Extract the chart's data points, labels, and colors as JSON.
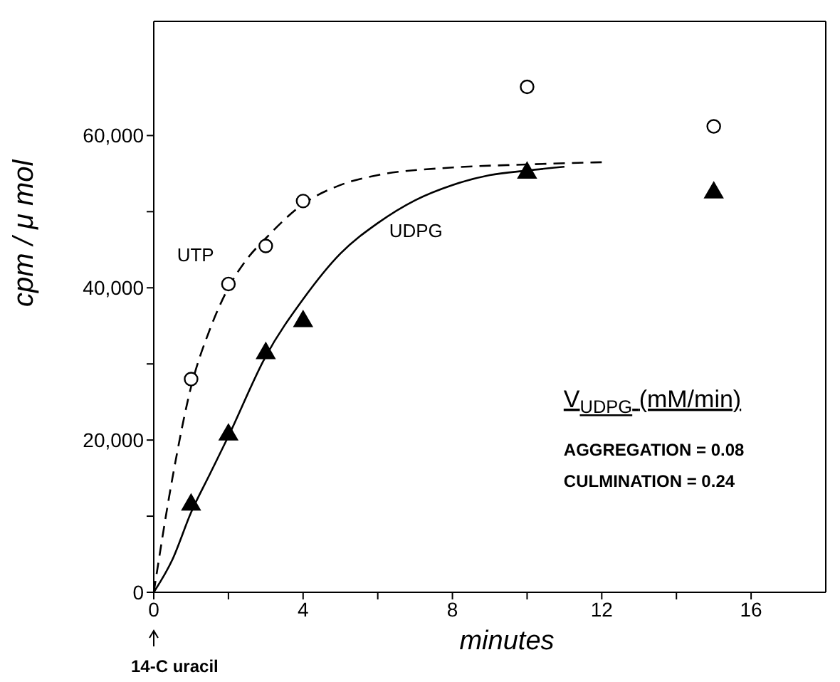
{
  "chart_data": {
    "type": "line",
    "xlabel": "minutes",
    "ylabel": "cpm / μ mol",
    "xlim": [
      0,
      18
    ],
    "ylim": [
      0,
      75000
    ],
    "xticks": [
      0,
      {
        "value": 2,
        "label": null
      },
      4,
      {
        "value": 6,
        "label": null
      },
      8,
      {
        "value": 10,
        "label": null
      },
      12,
      {
        "value": 14,
        "label": null
      },
      16
    ],
    "yticks": [
      {
        "value": 0,
        "label": "0"
      },
      {
        "value": 10000,
        "label": null
      },
      {
        "value": 20000,
        "label": "20,000"
      },
      {
        "value": 30000,
        "label": null
      },
      {
        "value": 40000,
        "label": "40,000"
      },
      {
        "value": 50000,
        "label": null
      },
      {
        "value": 60000,
        "label": "60,000"
      }
    ],
    "grid": false,
    "series": [
      {
        "name": "UTP",
        "line_style": "dashed",
        "marker": "none",
        "color": "#000000",
        "x": [
          0,
          0.5,
          1,
          1.5,
          2,
          2.5,
          3,
          4,
          5,
          6,
          8,
          10,
          12
        ],
        "values": [
          0,
          15000,
          27000,
          34500,
          40000,
          43800,
          46500,
          51000,
          53500,
          54800,
          55800,
          56200,
          56500
        ]
      },
      {
        "name": "UDPG",
        "line_style": "solid",
        "marker": "none",
        "color": "#000000",
        "x": [
          0,
          0.5,
          1,
          1.5,
          2,
          3,
          4,
          5,
          6,
          7,
          8,
          9,
          10,
          11
        ],
        "values": [
          0,
          4300,
          10500,
          15500,
          20500,
          31000,
          38500,
          44500,
          48500,
          51500,
          53500,
          54800,
          55400,
          55900
        ]
      },
      {
        "type": "scatter",
        "marker": "circle",
        "color": "#000000",
        "x": [
          1,
          2,
          3,
          4,
          10,
          15
        ],
        "values": [
          28000,
          40500,
          45500,
          51400,
          66400,
          61200
        ]
      },
      {
        "type": "scatter",
        "marker": "triangle",
        "color": "#000000",
        "x": [
          1,
          2,
          3,
          4,
          10,
          15
        ],
        "values": [
          11500,
          20700,
          31400,
          35600,
          55100,
          52500
        ]
      }
    ],
    "annotations": [
      "V$_{UDPG}$ (mM/min)",
      "AGGREGATION = 0.08",
      "CULMINATION = 0.24",
      "14-C uracil"
    ]
  }
}
